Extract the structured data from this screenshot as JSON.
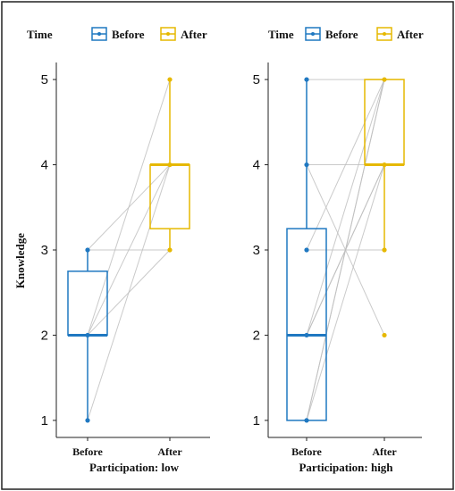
{
  "legend": {
    "title": "Time",
    "items": [
      {
        "label": "Before",
        "color": "#1f78c1"
      },
      {
        "label": "After",
        "color": "#e6b800"
      }
    ]
  },
  "chart_data": [
    {
      "type": "boxplot",
      "xlabel": "Participation: low",
      "ylabel": "Knowledge",
      "categories": [
        "Before",
        "After"
      ],
      "yticks": [
        1,
        2,
        3,
        4,
        5
      ],
      "ylim": [
        0.8,
        5.2
      ],
      "boxes": [
        {
          "category": "Before",
          "color": "#1f78c1",
          "min": 1,
          "q1": 2,
          "median": 2,
          "q3": 2.75,
          "max": 3
        },
        {
          "category": "After",
          "color": "#e6b800",
          "min": 3,
          "q1": 3.25,
          "median": 4,
          "q3": 4,
          "max": 5
        }
      ],
      "points": [
        {
          "category": "Before",
          "values": [
            1,
            2,
            3
          ]
        },
        {
          "category": "After",
          "values": [
            3,
            4,
            5
          ]
        }
      ],
      "pairs": [
        [
          2,
          5
        ],
        [
          2,
          4
        ],
        [
          3,
          4
        ],
        [
          3,
          3
        ],
        [
          1,
          4
        ],
        [
          2,
          3
        ]
      ]
    },
    {
      "type": "boxplot",
      "xlabel": "Participation: high",
      "ylabel": "",
      "categories": [
        "Before",
        "After"
      ],
      "yticks": [
        1,
        2,
        3,
        4,
        5
      ],
      "ylim": [
        0.8,
        5.2
      ],
      "boxes": [
        {
          "category": "Before",
          "color": "#1f78c1",
          "min": 1,
          "q1": 1,
          "median": 2,
          "q3": 3.25,
          "max": 5
        },
        {
          "category": "After",
          "color": "#e6b800",
          "min": 3,
          "q1": 4,
          "median": 4,
          "q3": 5,
          "max": 5
        }
      ],
      "points": [
        {
          "category": "Before",
          "values": [
            1,
            2,
            3,
            4,
            5
          ]
        },
        {
          "category": "After",
          "values": [
            2,
            3,
            4,
            5
          ]
        }
      ],
      "pairs": [
        [
          5,
          5
        ],
        [
          4,
          4
        ],
        [
          4,
          2
        ],
        [
          3,
          3
        ],
        [
          3,
          5
        ],
        [
          2,
          5
        ],
        [
          2,
          4
        ],
        [
          1,
          5
        ],
        [
          1,
          4
        ],
        [
          2,
          4
        ],
        [
          1,
          5
        ]
      ]
    }
  ]
}
